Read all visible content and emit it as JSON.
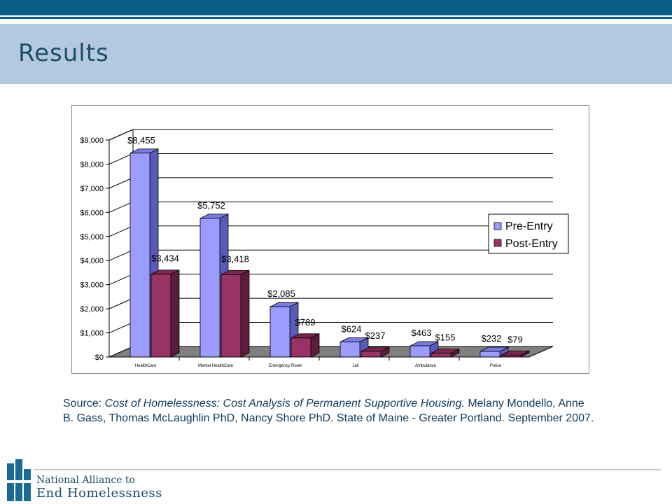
{
  "slide": {
    "title": "Results"
  },
  "source": {
    "prefix": "Source: ",
    "title": "Cost of Homelessness: Cost Analysis of Permanent Supportive Housing.",
    "rest": " Melany Mondello, Anne B. Gass, Thomas McLaughlin PhD, Nancy Shore PhD. State of Maine - Greater Portland. September 2007."
  },
  "logo": {
    "line1": "National Alliance to",
    "line2": "End Homelessness"
  },
  "chart_data": {
    "type": "bar",
    "categories": [
      "HealthCare",
      "Mental HealthCare",
      "Emergency Room",
      "Jail",
      "Ambulance",
      "Police"
    ],
    "series": [
      {
        "name": "Pre-Entry",
        "values": [
          8455,
          5752,
          2085,
          624,
          463,
          232
        ],
        "labels": [
          "$8,455",
          "$5,752",
          "$2,085",
          "$624",
          "$463",
          "$232"
        ]
      },
      {
        "name": "Post-Entry",
        "values": [
          3434,
          3418,
          789,
          237,
          155,
          79
        ],
        "labels": [
          "$3,434",
          "$3,418",
          "$789",
          "$237",
          "$155",
          "$79"
        ]
      }
    ],
    "yticks": [
      "$0",
      "$1,000",
      "$2,000",
      "$3,000",
      "$4,000",
      "$5,000",
      "$6,000",
      "$7,000",
      "$8,000",
      "$9,000"
    ],
    "ylim": [
      0,
      9000
    ],
    "grid": true,
    "legend": "right",
    "colors": {
      "pre_front": "#9c9cff",
      "pre_top": "#7a7adf",
      "pre_side": "#5a5ab8",
      "post_front": "#993366",
      "post_top": "#7a2850",
      "post_side": "#5c1d3c",
      "floor": "#808080"
    }
  }
}
